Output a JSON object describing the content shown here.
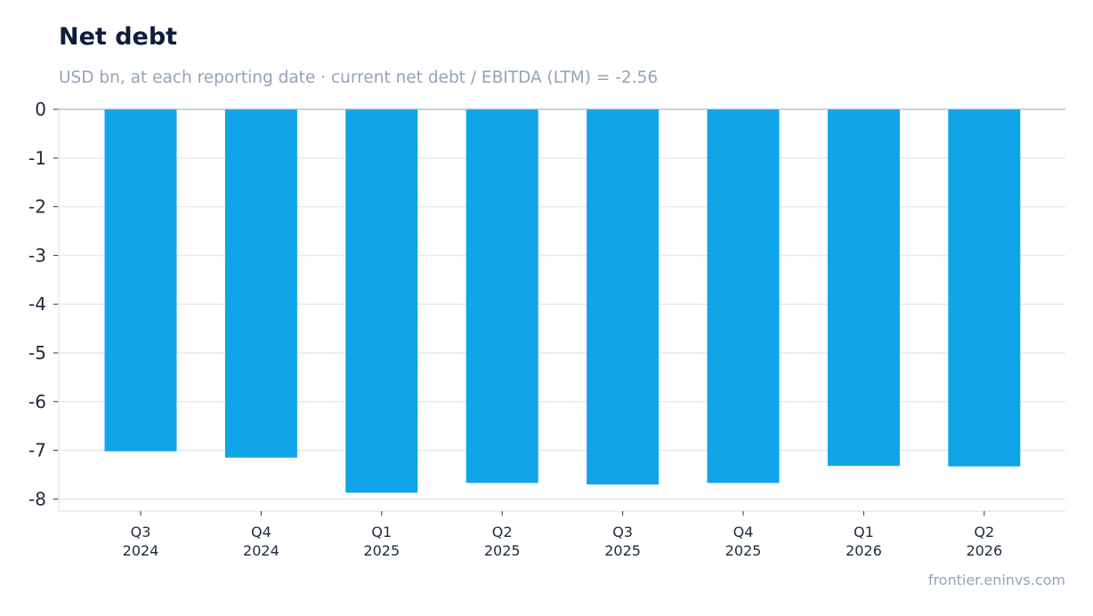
{
  "header": {
    "title": "Net debt",
    "subtitle": "USD bn, at each reporting date · current net debt / EBITDA (LTM) = -2.56"
  },
  "footer": {
    "source": "frontier.eninvs.com"
  },
  "colors": {
    "bar": "#10a5e8",
    "grid": "#e6eaee",
    "zero_line": "#9aa3ad",
    "text": "#1e293b"
  },
  "chart_data": {
    "type": "bar",
    "title": "Net debt",
    "subtitle": "USD bn, at each reporting date · current net debt / EBITDA (LTM) = -2.56",
    "categories": [
      [
        "Q3",
        "2024"
      ],
      [
        "Q4",
        "2024"
      ],
      [
        "Q1",
        "2025"
      ],
      [
        "Q2",
        "2025"
      ],
      [
        "Q3",
        "2025"
      ],
      [
        "Q4",
        "2025"
      ],
      [
        "Q1",
        "2026"
      ],
      [
        "Q2",
        "2026"
      ]
    ],
    "values": [
      -7.02,
      -7.15,
      -7.87,
      -7.67,
      -7.7,
      -7.67,
      -7.32,
      -7.33
    ],
    "yticks": [
      "0",
      "-1",
      "-2",
      "-3",
      "-4",
      "-5",
      "-6",
      "-7",
      "-8"
    ],
    "ylim": [
      -8.25,
      0
    ],
    "grid": true,
    "legend": "none"
  }
}
